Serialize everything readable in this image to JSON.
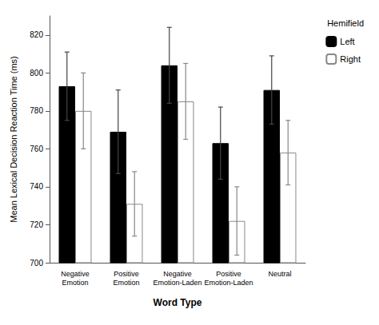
{
  "chart_data": {
    "type": "bar",
    "categories": [
      "Negative\nEmotion",
      "Positive\nEmotion",
      "Negative\nEmotion-Laden",
      "Positive\nEmotion-Laden",
      "Neutral"
    ],
    "series": [
      {
        "name": "Left",
        "color": "#000000",
        "values": [
          793,
          769,
          804,
          763,
          791
        ],
        "errors": [
          18,
          22,
          20,
          19,
          18
        ]
      },
      {
        "name": "Right",
        "color": "#ffffff",
        "values": [
          780,
          731,
          785,
          722,
          758
        ],
        "errors": [
          20,
          17,
          20,
          18,
          17
        ]
      }
    ],
    "xlabel": "Word Type",
    "ylabel": "Mean Lexical Decision Reaction Time (ms)",
    "ylim": [
      700,
      830
    ],
    "yticks": [
      700,
      720,
      740,
      760,
      780,
      800,
      820
    ],
    "legend_title": "Hemifield",
    "legend": "right",
    "grid": false
  }
}
